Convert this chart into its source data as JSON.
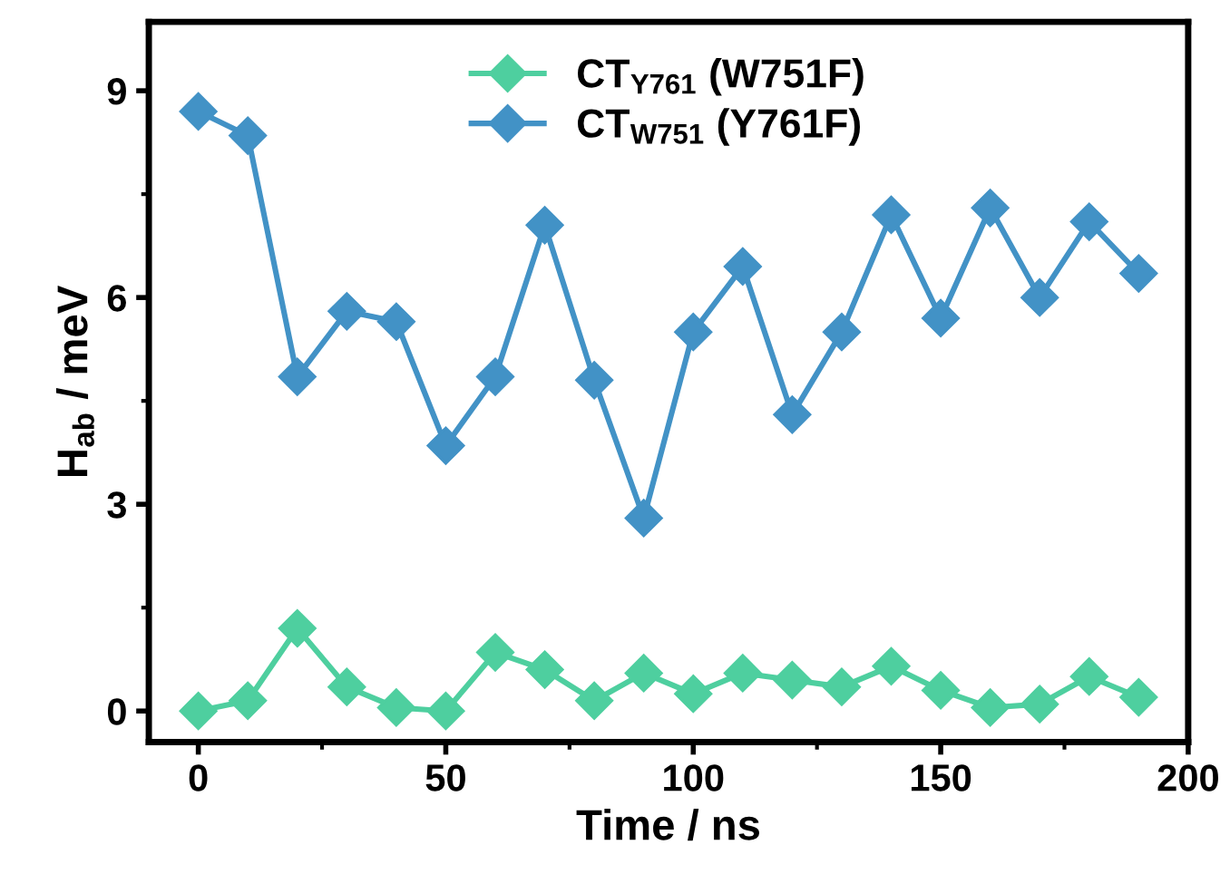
{
  "chart_data": {
    "type": "line",
    "xlabel": "Time / ns",
    "ylabel": "H$_{ab}$ / meV",
    "x": [
      0,
      10,
      20,
      30,
      40,
      50,
      60,
      70,
      80,
      90,
      100,
      110,
      120,
      130,
      140,
      150,
      160,
      170,
      180,
      190
    ],
    "series": [
      {
        "name": "CT$_{Y761}$ (W751F)",
        "color": "#4ecf9f",
        "values": [
          0,
          0.15,
          1.2,
          0.35,
          0.05,
          0.0,
          0.85,
          0.6,
          0.15,
          0.55,
          0.25,
          0.55,
          0.45,
          0.35,
          0.65,
          0.3,
          0.05,
          0.1,
          0.5,
          0.2
        ]
      },
      {
        "name": "CT$_{W751}$ (Y761F)",
        "color": "#4292c6",
        "values": [
          8.7,
          8.35,
          4.85,
          5.8,
          5.65,
          3.85,
          4.85,
          7.05,
          4.8,
          2.8,
          5.5,
          6.45,
          4.3,
          5.5,
          7.2,
          5.7,
          7.3,
          6.0,
          7.1,
          6.35
        ]
      }
    ],
    "xlim": [
      -10,
      200
    ],
    "xticks": [
      0,
      50,
      100,
      150,
      200
    ],
    "ylim": [
      -0.45,
      10
    ],
    "yticks": [
      0,
      3,
      6,
      9
    ],
    "marker": "diamond",
    "line_style": "solid",
    "legend": "top",
    "grid": false
  }
}
